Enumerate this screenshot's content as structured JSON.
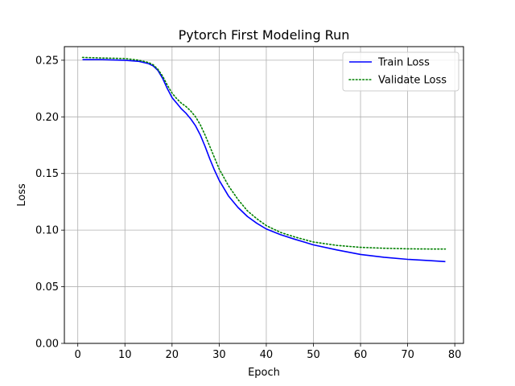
{
  "chart_data": {
    "type": "line",
    "title": "Pytorch First Modeling Run",
    "xlabel": "Epoch",
    "ylabel": "Loss",
    "xlim": [
      -2.85,
      81.85
    ],
    "ylim": [
      0.0,
      0.262
    ],
    "xticks": [
      0,
      10,
      20,
      30,
      40,
      50,
      60,
      70,
      80
    ],
    "yticks": [
      0.0,
      0.05,
      0.1,
      0.15,
      0.2,
      0.25
    ],
    "xtick_labels": [
      "0",
      "10",
      "20",
      "30",
      "40",
      "50",
      "60",
      "70",
      "80"
    ],
    "ytick_labels": [
      "0.00",
      "0.05",
      "0.10",
      "0.15",
      "0.20",
      "0.25"
    ],
    "grid": true,
    "legend_position": "top-right",
    "series": [
      {
        "name": "Train Loss",
        "color": "#0000ff",
        "style": "solid",
        "x": [
          1,
          5,
          10,
          13,
          15,
          16,
          17,
          18,
          19,
          20,
          21,
          22,
          23,
          24,
          25,
          26,
          27,
          28,
          29,
          30,
          32,
          34,
          36,
          38,
          40,
          43,
          46,
          50,
          55,
          60,
          65,
          70,
          75,
          78
        ],
        "y": [
          0.2505,
          0.2505,
          0.25,
          0.249,
          0.247,
          0.245,
          0.241,
          0.234,
          0.225,
          0.217,
          0.212,
          0.207,
          0.203,
          0.198,
          0.192,
          0.184,
          0.174,
          0.163,
          0.153,
          0.144,
          0.13,
          0.12,
          0.112,
          0.106,
          0.101,
          0.096,
          0.092,
          0.087,
          0.0825,
          0.0785,
          0.076,
          0.0742,
          0.073,
          0.0722
        ]
      },
      {
        "name": "Validate Loss",
        "color": "#008000",
        "style": "dotted",
        "x": [
          1,
          5,
          10,
          13,
          15,
          16,
          17,
          18,
          19,
          20,
          21,
          22,
          23,
          24,
          25,
          26,
          27,
          28,
          29,
          30,
          32,
          34,
          36,
          38,
          40,
          43,
          46,
          50,
          55,
          60,
          65,
          70,
          75,
          78
        ],
        "y": [
          0.2525,
          0.252,
          0.2515,
          0.25,
          0.248,
          0.246,
          0.242,
          0.236,
          0.228,
          0.221,
          0.216,
          0.212,
          0.209,
          0.205,
          0.2,
          0.193,
          0.184,
          0.174,
          0.164,
          0.154,
          0.139,
          0.127,
          0.117,
          0.11,
          0.104,
          0.098,
          0.094,
          0.0895,
          0.0865,
          0.0848,
          0.084,
          0.0835,
          0.0833,
          0.0833
        ]
      }
    ]
  }
}
